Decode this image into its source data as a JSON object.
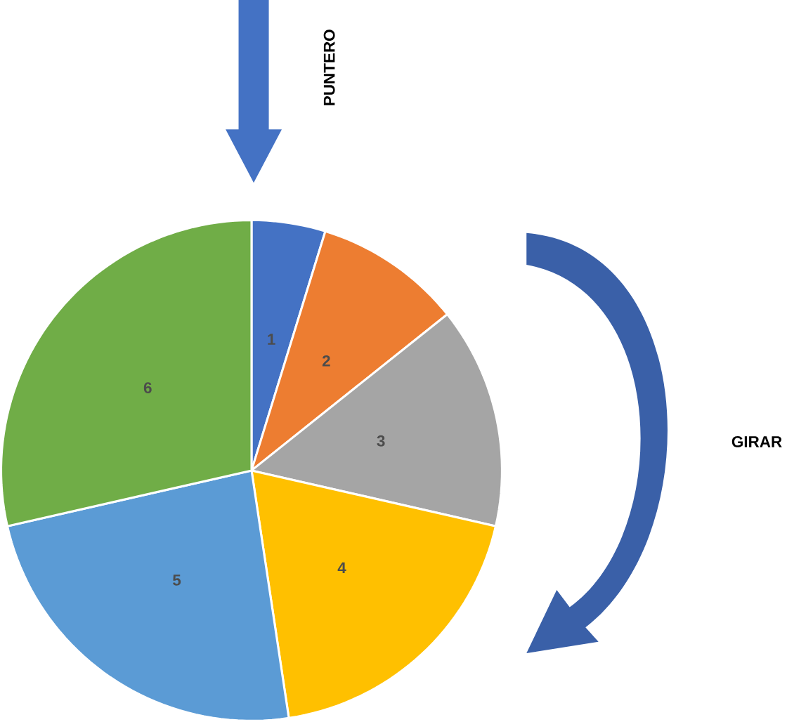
{
  "chart_data": {
    "type": "pie",
    "categories": [
      "1",
      "2",
      "3",
      "4",
      "5",
      "6"
    ],
    "values": [
      4.76,
      9.52,
      14.29,
      19.05,
      23.81,
      28.57
    ],
    "colors": [
      "#4472c4",
      "#ed7d31",
      "#a5a5a5",
      "#ffc000",
      "#5b9bd5",
      "#70ad47"
    ],
    "annotations": [
      "PUNTERO",
      "GIRAR"
    ]
  }
}
